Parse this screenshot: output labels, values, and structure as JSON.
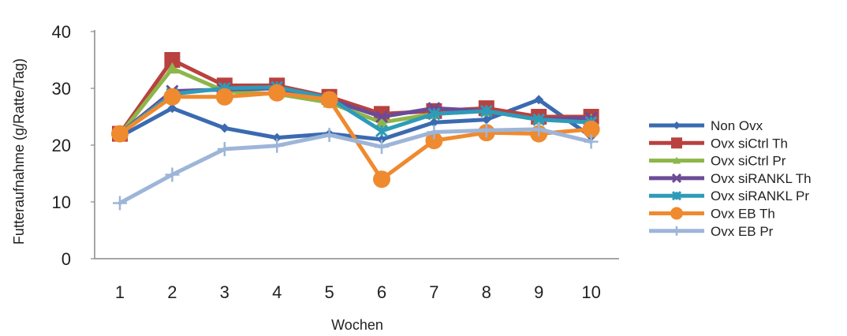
{
  "chart_data": {
    "type": "line",
    "title": "",
    "xlabel": "Wochen",
    "ylabel": "Futteraufnahme (g/Ratte/Tag)",
    "categories": [
      "1",
      "2",
      "3",
      "4",
      "5",
      "6",
      "7",
      "8",
      "9",
      "10"
    ],
    "yticks": [
      "0",
      "10",
      "20",
      "30",
      "40"
    ],
    "ylim": [
      0,
      40
    ],
    "grid": false,
    "legend_position": "right",
    "series": [
      {
        "name": "Non Ovx",
        "color": "#3b6ab0",
        "marker": "diamond",
        "values": [
          21.5,
          26.5,
          23,
          21.3,
          22,
          21,
          24,
          24.5,
          28,
          21.5
        ]
      },
      {
        "name": "Ovx siCtrl Th",
        "color": "#b9413f",
        "marker": "square",
        "values": [
          22,
          35,
          30.5,
          30.5,
          28.5,
          25.5,
          26,
          26.5,
          25,
          25
        ]
      },
      {
        "name": "Ovx siCtrl Pr",
        "color": "#8db64a",
        "marker": "triangle",
        "values": [
          21.8,
          33.5,
          29.5,
          29,
          27.5,
          24,
          25.5,
          26,
          24.5,
          24.5
        ]
      },
      {
        "name": "Ovx siRANKL Th",
        "color": "#6c4b96",
        "marker": "x",
        "values": [
          22,
          29.5,
          29.8,
          30,
          28,
          25,
          26.5,
          26,
          24.5,
          24.8
        ]
      },
      {
        "name": "Ovx siRANKL Pr",
        "color": "#2e9bb8",
        "marker": "star",
        "values": [
          22,
          29,
          30,
          30.2,
          28.3,
          22.5,
          25.5,
          26,
          24.5,
          24
        ]
      },
      {
        "name": "Ovx EB Th",
        "color": "#ef8a2f",
        "marker": "circle",
        "values": [
          22,
          28.5,
          28.5,
          29.2,
          28,
          14,
          20.8,
          22.2,
          22,
          22.8
        ]
      },
      {
        "name": "Ovx EB Pr",
        "color": "#9db5d8",
        "marker": "plus",
        "values": [
          9.8,
          14.8,
          19.3,
          19.9,
          21.8,
          19.7,
          22.3,
          22.6,
          22.8,
          20.6
        ]
      }
    ]
  }
}
